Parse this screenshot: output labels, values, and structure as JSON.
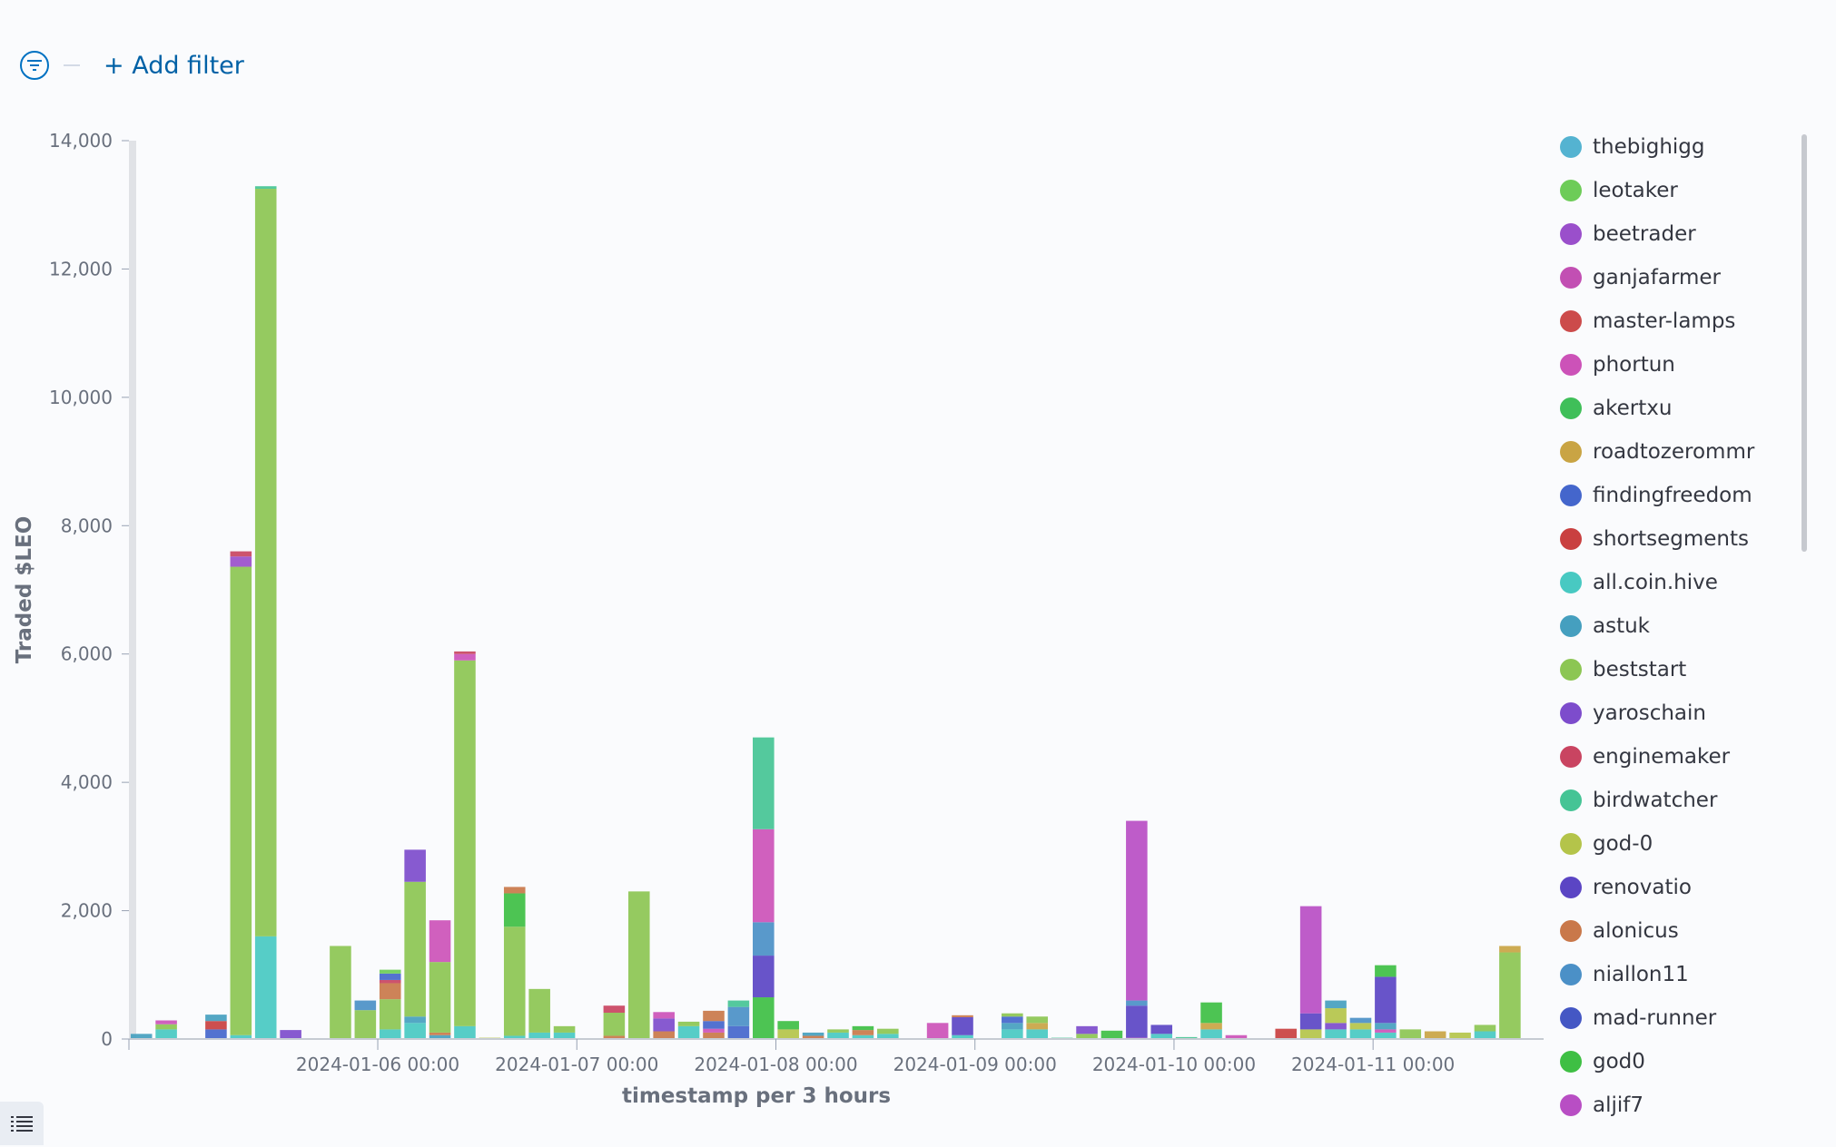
{
  "filter_bar": {
    "add_filter_label": "+ Add filter",
    "filter_icon": "filter-icon"
  },
  "legend_toggle": {
    "icon": "list-icon"
  },
  "chart_data": {
    "type": "bar",
    "stacked": true,
    "ylabel": "Traded $LEO",
    "xlabel": "timestamp per 3 hours",
    "ylim": [
      0,
      14000
    ],
    "yticks": [
      0,
      2000,
      4000,
      6000,
      8000,
      10000,
      12000,
      14000
    ],
    "ytick_labels": [
      "0",
      "2,000",
      "4,000",
      "6,000",
      "8,000",
      "10,000",
      "12,000",
      "14,000"
    ],
    "xlim": [
      -5,
      51
    ],
    "x_ticks": [
      {
        "x": 5,
        "label": "2024-01-06 00:00"
      },
      {
        "x": 13,
        "label": "2024-01-07 00:00"
      },
      {
        "x": 21,
        "label": "2024-01-08 00:00"
      },
      {
        "x": 29,
        "label": "2024-01-09 00:00"
      },
      {
        "x": 37,
        "label": "2024-01-10 00:00"
      },
      {
        "x": 45,
        "label": "2024-01-11 00:00"
      }
    ],
    "legend_position": "right",
    "series": [
      {
        "name": "thebighigg",
        "color": "#54b3d1"
      },
      {
        "name": "leotaker",
        "color": "#6dcc58"
      },
      {
        "name": "beetrader",
        "color": "#9a4fcb"
      },
      {
        "name": "ganjafarmer",
        "color": "#c24fb3"
      },
      {
        "name": "master-lamps",
        "color": "#cc4b4b"
      },
      {
        "name": "phortun",
        "color": "#cc52b8"
      },
      {
        "name": "akertxu",
        "color": "#3fbf59"
      },
      {
        "name": "roadtozerommr",
        "color": "#c9a444"
      },
      {
        "name": "findingfreedom",
        "color": "#4466cc"
      },
      {
        "name": "shortsegments",
        "color": "#c94040"
      },
      {
        "name": "all.coin.hive",
        "color": "#48c9c2"
      },
      {
        "name": "astuk",
        "color": "#459fbf"
      },
      {
        "name": "beststart",
        "color": "#8cc653"
      },
      {
        "name": "yaroschain",
        "color": "#7d4ccc"
      },
      {
        "name": "enginemaker",
        "color": "#c94461"
      },
      {
        "name": "birdwatcher",
        "color": "#45c495"
      },
      {
        "name": "god-0",
        "color": "#b4c44a"
      },
      {
        "name": "renovatio",
        "color": "#5b45c4"
      },
      {
        "name": "alonicus",
        "color": "#c9784a"
      },
      {
        "name": "niallon11",
        "color": "#4b90c7"
      },
      {
        "name": "mad-runner",
        "color": "#4457c4"
      },
      {
        "name": "god0",
        "color": "#3ebf44"
      },
      {
        "name": "aljif7",
        "color": "#b84ec4"
      }
    ],
    "bars": [
      {
        "x": -5,
        "stack": [
          {
            "s": "astuk",
            "v": 80
          }
        ]
      },
      {
        "x": -4,
        "stack": [
          {
            "s": "all.coin.hive",
            "v": 150
          },
          {
            "s": "beststart",
            "v": 80
          },
          {
            "s": "phortun",
            "v": 60
          }
        ]
      },
      {
        "x": -2,
        "stack": [
          {
            "s": "findingfreedom",
            "v": 150
          },
          {
            "s": "shortsegments",
            "v": 130
          },
          {
            "s": "astuk",
            "v": 100
          }
        ]
      },
      {
        "x": -1,
        "stack": [
          {
            "s": "all.coin.hive",
            "v": 60
          },
          {
            "s": "beststart",
            "v": 7300
          },
          {
            "s": "beetrader",
            "v": 160
          },
          {
            "s": "enginemaker",
            "v": 80
          }
        ]
      },
      {
        "x": 0,
        "stack": [
          {
            "s": "all.coin.hive",
            "v": 1600
          },
          {
            "s": "beststart",
            "v": 11650
          },
          {
            "s": "birdwatcher",
            "v": 40
          }
        ]
      },
      {
        "x": 1,
        "stack": [
          {
            "s": "yaroschain",
            "v": 140
          }
        ]
      },
      {
        "x": 3,
        "stack": [
          {
            "s": "beststart",
            "v": 1450
          }
        ]
      },
      {
        "x": 4,
        "stack": [
          {
            "s": "beststart",
            "v": 450
          },
          {
            "s": "niallon11",
            "v": 150
          }
        ]
      },
      {
        "x": 5,
        "stack": [
          {
            "s": "all.coin.hive",
            "v": 150
          },
          {
            "s": "beststart",
            "v": 470
          },
          {
            "s": "alonicus",
            "v": 250
          },
          {
            "s": "enginemaker",
            "v": 50
          },
          {
            "s": "findingfreedom",
            "v": 100
          },
          {
            "s": "leotaker",
            "v": 60
          }
        ]
      },
      {
        "x": 6,
        "stack": [
          {
            "s": "all.coin.hive",
            "v": 250
          },
          {
            "s": "astuk",
            "v": 100
          },
          {
            "s": "beststart",
            "v": 2100
          },
          {
            "s": "yaroschain",
            "v": 500
          }
        ]
      },
      {
        "x": 7,
        "stack": [
          {
            "s": "astuk",
            "v": 60
          },
          {
            "s": "alonicus",
            "v": 40
          },
          {
            "s": "beststart",
            "v": 1100
          },
          {
            "s": "phortun",
            "v": 650
          }
        ]
      },
      {
        "x": 8,
        "stack": [
          {
            "s": "all.coin.hive",
            "v": 200
          },
          {
            "s": "beststart",
            "v": 5700
          },
          {
            "s": "phortun",
            "v": 100
          },
          {
            "s": "enginemaker",
            "v": 40
          }
        ]
      },
      {
        "x": 9,
        "stack": [
          {
            "s": "god-0",
            "v": 20
          }
        ]
      },
      {
        "x": 10,
        "stack": [
          {
            "s": "all.coin.hive",
            "v": 50
          },
          {
            "s": "beststart",
            "v": 1700
          },
          {
            "s": "god0",
            "v": 520
          },
          {
            "s": "alonicus",
            "v": 100
          }
        ]
      },
      {
        "x": 11,
        "stack": [
          {
            "s": "all.coin.hive",
            "v": 100
          },
          {
            "s": "beststart",
            "v": 680
          }
        ]
      },
      {
        "x": 12,
        "stack": [
          {
            "s": "all.coin.hive",
            "v": 100
          },
          {
            "s": "beststart",
            "v": 100
          }
        ]
      },
      {
        "x": 14,
        "stack": [
          {
            "s": "alonicus",
            "v": 50
          },
          {
            "s": "beststart",
            "v": 360
          },
          {
            "s": "enginemaker",
            "v": 110
          }
        ]
      },
      {
        "x": 15,
        "stack": [
          {
            "s": "beststart",
            "v": 2300
          }
        ]
      },
      {
        "x": 16,
        "stack": [
          {
            "s": "alonicus",
            "v": 120
          },
          {
            "s": "yaroschain",
            "v": 200
          },
          {
            "s": "phortun",
            "v": 100
          }
        ]
      },
      {
        "x": 17,
        "stack": [
          {
            "s": "all.coin.hive",
            "v": 200
          },
          {
            "s": "beststart",
            "v": 70
          }
        ]
      },
      {
        "x": 18,
        "stack": [
          {
            "s": "alonicus",
            "v": 100
          },
          {
            "s": "phortun",
            "v": 60
          },
          {
            "s": "findingfreedom",
            "v": 120
          },
          {
            "s": "alonicus",
            "v": 160
          }
        ]
      },
      {
        "x": 19,
        "stack": [
          {
            "s": "findingfreedom",
            "v": 200
          },
          {
            "s": "niallon11",
            "v": 300
          },
          {
            "s": "birdwatcher",
            "v": 100
          }
        ]
      },
      {
        "x": 20,
        "stack": [
          {
            "s": "god0",
            "v": 650
          },
          {
            "s": "renovatio",
            "v": 650
          },
          {
            "s": "niallon11",
            "v": 520
          },
          {
            "s": "phortun",
            "v": 1450
          },
          {
            "s": "birdwatcher",
            "v": 1430
          }
        ]
      },
      {
        "x": 21,
        "stack": [
          {
            "s": "god-0",
            "v": 150
          },
          {
            "s": "god0",
            "v": 130
          }
        ]
      },
      {
        "x": 22,
        "stack": [
          {
            "s": "alonicus",
            "v": 50
          },
          {
            "s": "astuk",
            "v": 50
          }
        ]
      },
      {
        "x": 23,
        "stack": [
          {
            "s": "all.coin.hive",
            "v": 100
          },
          {
            "s": "beststart",
            "v": 50
          }
        ]
      },
      {
        "x": 24,
        "stack": [
          {
            "s": "all.coin.hive",
            "v": 60
          },
          {
            "s": "alonicus",
            "v": 80
          },
          {
            "s": "god0",
            "v": 60
          }
        ]
      },
      {
        "x": 25,
        "stack": [
          {
            "s": "all.coin.hive",
            "v": 80
          },
          {
            "s": "beststart",
            "v": 80
          }
        ]
      },
      {
        "x": 27,
        "stack": [
          {
            "s": "phortun",
            "v": 250
          }
        ]
      },
      {
        "x": 28,
        "stack": [
          {
            "s": "all.coin.hive",
            "v": 60
          },
          {
            "s": "renovatio",
            "v": 280
          },
          {
            "s": "alonicus",
            "v": 30
          }
        ]
      },
      {
        "x": 30,
        "stack": [
          {
            "s": "all.coin.hive",
            "v": 150
          },
          {
            "s": "astuk",
            "v": 100
          },
          {
            "s": "findingfreedom",
            "v": 100
          },
          {
            "s": "beststart",
            "v": 50
          }
        ]
      },
      {
        "x": 31,
        "stack": [
          {
            "s": "all.coin.hive",
            "v": 150
          },
          {
            "s": "roadtozerommr",
            "v": 100
          },
          {
            "s": "beststart",
            "v": 100
          }
        ]
      },
      {
        "x": 32,
        "stack": [
          {
            "s": "birdwatcher",
            "v": 20
          }
        ]
      },
      {
        "x": 33,
        "stack": [
          {
            "s": "beststart",
            "v": 80
          },
          {
            "s": "yaroschain",
            "v": 120
          }
        ]
      },
      {
        "x": 34,
        "stack": [
          {
            "s": "god0",
            "v": 130
          }
        ]
      },
      {
        "x": 35,
        "stack": [
          {
            "s": "phortun",
            "v": 20
          },
          {
            "s": "renovatio",
            "v": 500
          },
          {
            "s": "niallon11",
            "v": 80
          },
          {
            "s": "aljif7",
            "v": 2800
          }
        ]
      },
      {
        "x": 36,
        "stack": [
          {
            "s": "all.coin.hive",
            "v": 80
          },
          {
            "s": "renovatio",
            "v": 140
          }
        ]
      },
      {
        "x": 37,
        "stack": [
          {
            "s": "birdwatcher",
            "v": 30
          }
        ]
      },
      {
        "x": 38,
        "stack": [
          {
            "s": "all.coin.hive",
            "v": 150
          },
          {
            "s": "roadtozerommr",
            "v": 100
          },
          {
            "s": "god0",
            "v": 320
          }
        ]
      },
      {
        "x": 39,
        "stack": [
          {
            "s": "phortun",
            "v": 60
          }
        ]
      },
      {
        "x": 41,
        "stack": [
          {
            "s": "shortsegments",
            "v": 160
          }
        ]
      },
      {
        "x": 42,
        "stack": [
          {
            "s": "god-0",
            "v": 150
          },
          {
            "s": "renovatio",
            "v": 250
          },
          {
            "s": "aljif7",
            "v": 1670
          }
        ]
      },
      {
        "x": 43,
        "stack": [
          {
            "s": "all.coin.hive",
            "v": 150
          },
          {
            "s": "yaroschain",
            "v": 100
          },
          {
            "s": "god-0",
            "v": 230
          },
          {
            "s": "astuk",
            "v": 120
          }
        ]
      },
      {
        "x": 44,
        "stack": [
          {
            "s": "all.coin.hive",
            "v": 150
          },
          {
            "s": "god-0",
            "v": 100
          },
          {
            "s": "niallon11",
            "v": 80
          }
        ]
      },
      {
        "x": 45,
        "stack": [
          {
            "s": "all.coin.hive",
            "v": 100
          },
          {
            "s": "phortun",
            "v": 50
          },
          {
            "s": "astuk",
            "v": 100
          },
          {
            "s": "renovatio",
            "v": 720
          },
          {
            "s": "god0",
            "v": 180
          }
        ]
      },
      {
        "x": 46,
        "stack": [
          {
            "s": "beststart",
            "v": 150
          }
        ]
      },
      {
        "x": 47,
        "stack": [
          {
            "s": "roadtozerommr",
            "v": 120
          }
        ]
      },
      {
        "x": 48,
        "stack": [
          {
            "s": "god-0",
            "v": 100
          }
        ]
      },
      {
        "x": 49,
        "stack": [
          {
            "s": "all.coin.hive",
            "v": 120
          },
          {
            "s": "beststart",
            "v": 100
          }
        ]
      },
      {
        "x": 50,
        "stack": [
          {
            "s": "beststart",
            "v": 1350
          },
          {
            "s": "roadtozerommr",
            "v": 100
          }
        ]
      }
    ]
  }
}
